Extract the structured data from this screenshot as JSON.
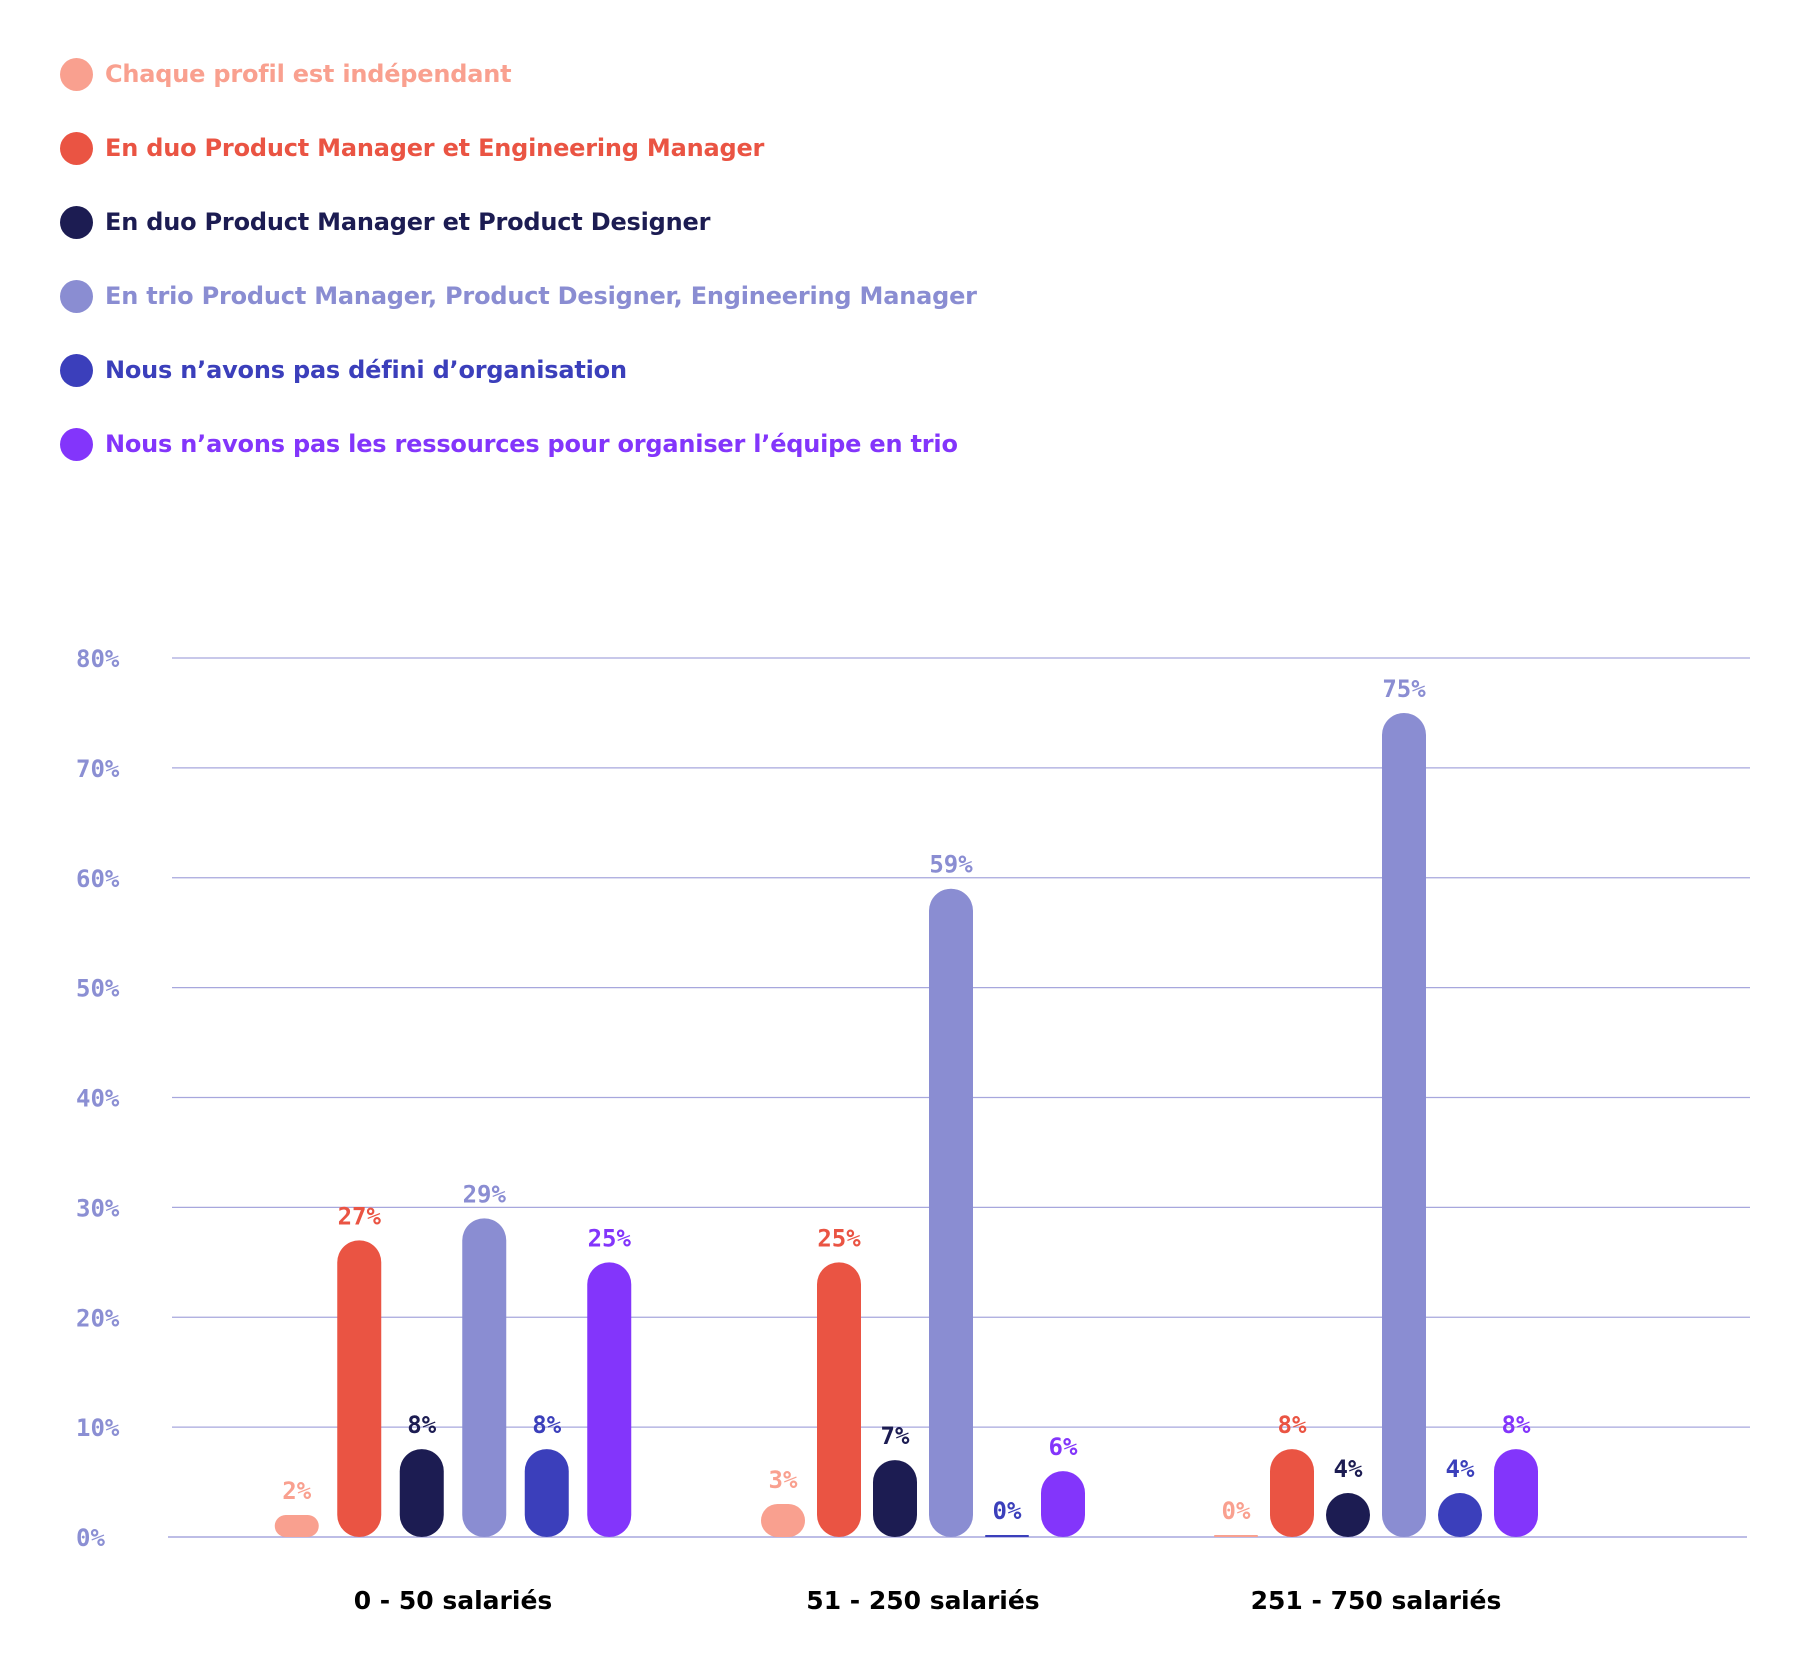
{
  "chart_data": {
    "type": "bar",
    "categories": [
      "0 - 50 salariés",
      "51 - 250 salariés",
      "251 - 750 salariés"
    ],
    "series": [
      {
        "name": "Chaque profil est indépendant",
        "color": "#f9a08f",
        "values": [
          2,
          3,
          0
        ],
        "labels": [
          "2%",
          "3%",
          "0%"
        ]
      },
      {
        "name": "En duo Product Manager et Engineering Manager",
        "color": "#ea5443",
        "values": [
          27,
          25,
          8
        ],
        "labels": [
          "27%",
          "25%",
          "8%"
        ]
      },
      {
        "name": "En duo Product Manager et Product Designer",
        "color": "#1c1c52",
        "values": [
          8,
          7,
          4
        ],
        "labels": [
          "8%",
          "7%",
          "4%"
        ]
      },
      {
        "name": "En trio Product Manager, Product Designer, Engineering Manager",
        "color": "#8a8dd2",
        "values": [
          29,
          59,
          75
        ],
        "labels": [
          "29%",
          "59%",
          "75%"
        ]
      },
      {
        "name": "Nous n’avons pas défini d’organisation",
        "color": "#3b3fbb",
        "values": [
          8,
          0,
          4
        ],
        "labels": [
          "8%",
          "0%",
          "4%"
        ]
      },
      {
        "name": "Nous n’avons pas les ressources pour organiser l’équipe en trio",
        "color": "#8335fb",
        "values": [
          25,
          6,
          8
        ],
        "labels": [
          "25%",
          "6%",
          "8%"
        ]
      }
    ],
    "ylim": [
      0,
      80
    ],
    "yticks": [
      "0%",
      "10%",
      "20%",
      "30%",
      "40%",
      "50%",
      "60%",
      "70%",
      "80%"
    ],
    "grid": true,
    "legend_position": "top-left",
    "gridline_color": "#a7a7dd",
    "tick_color": "#8b8fd3"
  }
}
